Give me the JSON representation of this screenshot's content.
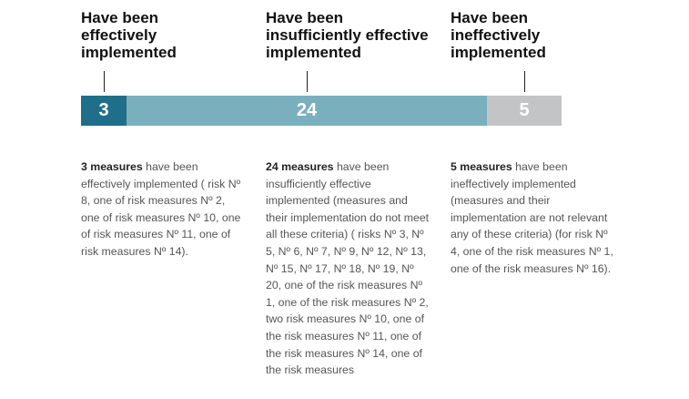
{
  "chart_data": {
    "type": "bar",
    "orientation": "horizontal-stacked",
    "categories": [
      "Have been effectively implemented",
      "Have been insufficiently effective implemented",
      "Have been ineffectively implemented"
    ],
    "headings": [
      "Have been\neffectively\nimplemented",
      "Have been\ninsufficiently effective\nimplemented",
      "Have been\nineffectively\nimplemented"
    ],
    "values": [
      3,
      24,
      5
    ],
    "value_labels": [
      "3",
      "24",
      "5"
    ],
    "colors": [
      "#1f6f8b",
      "#7aafbd",
      "#c2c4c6"
    ],
    "descriptions": [
      {
        "lead": "3 measures",
        "text": " have been effectively implemented ( risk Nº 8, one of risk measures Nº 2, one of risk measures Nº 10, one of risk measures Nº 11, one of risk measures Nº 14)."
      },
      {
        "lead": "24 measures",
        "text": " have been insufficiently effective implemented (measures and their implementation do not meet all these criteria) ( risks Nº 3, Nº 5, Nº 6, Nº 7, Nº 9, Nº 12, Nº 13, Nº 15, Nº 17, Nº 18, Nº 19, Nº 20, one of the risk measures Nº 1, one of the risk measures Nº 2, two risk measures Nº 10, one of the risk measures Nº 11, one of the risk measures Nº 14, one of the risk measures"
      },
      {
        "lead": "5 measures",
        "text": " have been ineffectively implemented (measures and their implementation are not relevant any of these criteria) (for risk Nº 4, one of the risk measures Nº 1, one of the risk measures Nº 16)."
      }
    ]
  }
}
